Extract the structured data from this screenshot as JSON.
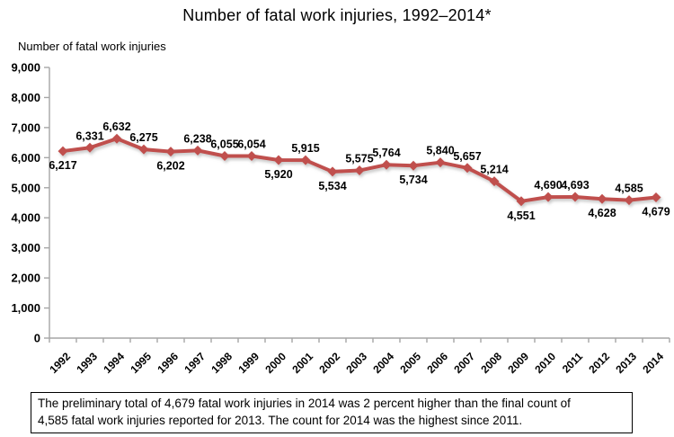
{
  "chart_data": {
    "type": "line",
    "title": "Number of fatal work injuries, 1992–2014*",
    "ylabel": "Number of fatal work injuries",
    "categories": [
      "1992",
      "1993",
      "1994",
      "1995",
      "1996",
      "1997",
      "1998",
      "1999",
      "2000",
      "2001",
      "2002",
      "2003",
      "2004",
      "2005",
      "2006",
      "2007",
      "2008",
      "2009",
      "2010",
      "2011",
      "2012",
      "2013",
      "2014"
    ],
    "values": [
      6217,
      6331,
      6632,
      6275,
      6202,
      6238,
      6055,
      6054,
      5920,
      5915,
      5534,
      5575,
      5764,
      5734,
      5840,
      5657,
      5214,
      4551,
      4690,
      4693,
      4628,
      4585,
      4679
    ],
    "data_labels": [
      "6,217",
      "6,331",
      "6,632",
      "6,275",
      "6,202",
      "6,238",
      "6,055",
      "6,054",
      "5,920",
      "5,915",
      "5,534",
      "5,575",
      "5,764",
      "5,734",
      "5,840",
      "5,657",
      "5,214",
      "4,551",
      "4,690",
      "4,693",
      "4,628",
      "4,585",
      "4,679"
    ],
    "label_positions": [
      "below",
      "above",
      "above",
      "above",
      "below",
      "above",
      "above",
      "above",
      "below",
      "above",
      "below",
      "above",
      "above",
      "below",
      "above",
      "above",
      "above",
      "below",
      "above",
      "above",
      "below",
      "above",
      "below"
    ],
    "ylim": [
      0,
      9000
    ],
    "ytick_step": 1000,
    "ytick_labels": [
      "0",
      "1,000",
      "2,000",
      "3,000",
      "4,000",
      "5,000",
      "6,000",
      "7,000",
      "8,000",
      "9,000"
    ],
    "grid": "off",
    "legend": "none",
    "colors": {
      "line": "#C0504D",
      "marker": "#C0504D",
      "axis": "#A6A6A6",
      "text": "#000000",
      "background": "#FFFFFF"
    }
  },
  "footnote": {
    "lines": [
      "The preliminary total of 4,679 fatal work injuries in 2014 was 2 percent higher than the final count of",
      "4,585 fatal work injuries reported for 2013. The count for 2014 was the highest since 2011."
    ]
  }
}
